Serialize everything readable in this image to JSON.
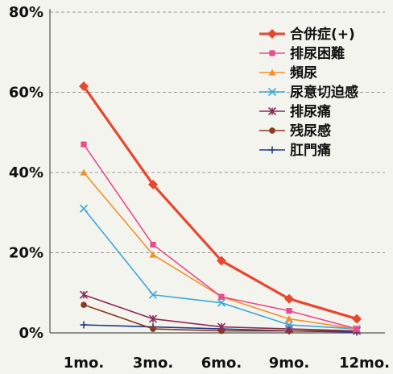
{
  "chart_data": {
    "type": "line",
    "title": "",
    "xlabel": "",
    "ylabel": "",
    "categories": [
      "1mo.",
      "3mo.",
      "6mo.",
      "9mo.",
      "12mo."
    ],
    "y_ticks": [
      "0%",
      "20%",
      "40%",
      "60%",
      "80%"
    ],
    "ylim": [
      0,
      80
    ],
    "grid": "horizontal dashed",
    "legend_position": "top-right",
    "series": [
      {
        "name": "合併症(+)",
        "values": [
          61.5,
          37.0,
          18.0,
          8.5,
          3.5
        ],
        "color": "#e8472e",
        "marker": "diamond",
        "width": 3.2
      },
      {
        "name": "排尿困難",
        "values": [
          47.0,
          22.0,
          9.0,
          5.5,
          1.0
        ],
        "color": "#ea4a8e",
        "marker": "square",
        "width": 1.6
      },
      {
        "name": "頻尿",
        "values": [
          40.0,
          19.5,
          9.0,
          3.5,
          1.0
        ],
        "color": "#f0912a",
        "marker": "triangle",
        "width": 1.6
      },
      {
        "name": "尿意切迫感",
        "values": [
          31.0,
          9.5,
          7.5,
          2.0,
          1.0
        ],
        "color": "#3aa7d9",
        "marker": "x",
        "width": 1.6
      },
      {
        "name": "排尿痛",
        "values": [
          9.5,
          3.5,
          1.5,
          1.0,
          0.5
        ],
        "color": "#8a2a5a",
        "marker": "star",
        "width": 1.6
      },
      {
        "name": "残尿感",
        "values": [
          7.0,
          1.0,
          0.5,
          0.5,
          0.5
        ],
        "color": "#8a3a20",
        "marker": "circle",
        "width": 1.6
      },
      {
        "name": "肛門痛",
        "values": [
          2.0,
          1.5,
          1.0,
          0.5,
          0.2
        ],
        "color": "#1f3a8a",
        "marker": "plus",
        "width": 1.6
      }
    ]
  }
}
